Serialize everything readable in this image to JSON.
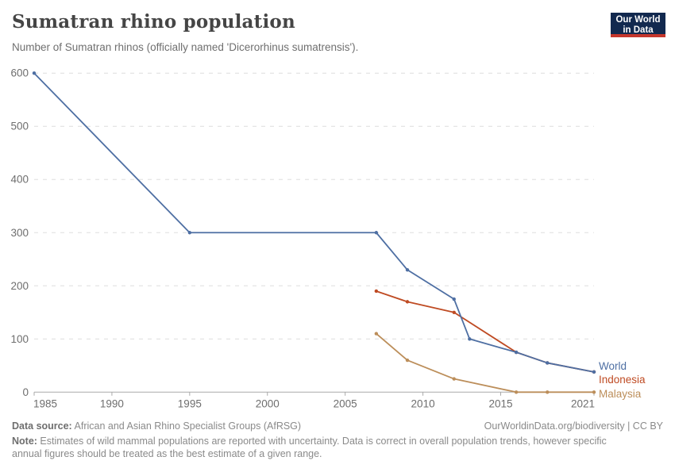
{
  "header": {
    "title": "Sumatran rhino population",
    "subtitle": "Number of Sumatran rhinos (officially named 'Dicerorhinus sumatrensis')."
  },
  "logo": {
    "line1": "Our World",
    "line2": "in Data",
    "bg_color": "#12294F",
    "accent_color": "#C5362C"
  },
  "chart_data": {
    "type": "line",
    "title": "Sumatran rhino population",
    "xlabel": "",
    "ylabel": "",
    "xlim": [
      1985,
      2021
    ],
    "ylim": [
      0,
      600
    ],
    "x_ticks": [
      1985,
      1990,
      1995,
      2000,
      2005,
      2010,
      2015,
      2021
    ],
    "y_ticks": [
      0,
      100,
      200,
      300,
      400,
      500,
      600
    ],
    "grid": "horizontal-dashed",
    "legend_position": "right-end-labels",
    "series": [
      {
        "name": "Malaysia",
        "color": "#BC8E5A",
        "points": [
          [
            2007,
            110
          ],
          [
            2009,
            60
          ],
          [
            2012,
            25
          ],
          [
            2016,
            0
          ],
          [
            2018,
            0
          ],
          [
            2021,
            0
          ]
        ]
      },
      {
        "name": "Indonesia",
        "color": "#BF4B23",
        "points": [
          [
            2007,
            190
          ],
          [
            2009,
            170
          ],
          [
            2012,
            150
          ],
          [
            2016,
            75
          ],
          [
            2018,
            55
          ],
          [
            2021,
            38
          ]
        ]
      },
      {
        "name": "World",
        "color": "#4E6FA3",
        "points": [
          [
            1985,
            600
          ],
          [
            1995,
            300
          ],
          [
            2007,
            300
          ],
          [
            2009,
            230
          ],
          [
            2012,
            175
          ],
          [
            2013,
            100
          ],
          [
            2016,
            75
          ],
          [
            2018,
            55
          ],
          [
            2021,
            38
          ]
        ]
      }
    ]
  },
  "footer": {
    "source_label": "Data source:",
    "source_text": " African and Asian Rhino Specialist Groups (AfRSG)",
    "attribution": "OurWorldinData.org/biodiversity | CC BY",
    "note_label": "Note:",
    "note_text": " Estimates of wild mammal populations are reported with uncertainty. Data is correct in overall population trends, however specific annual figures should be treated as the best estimate of a given range."
  }
}
